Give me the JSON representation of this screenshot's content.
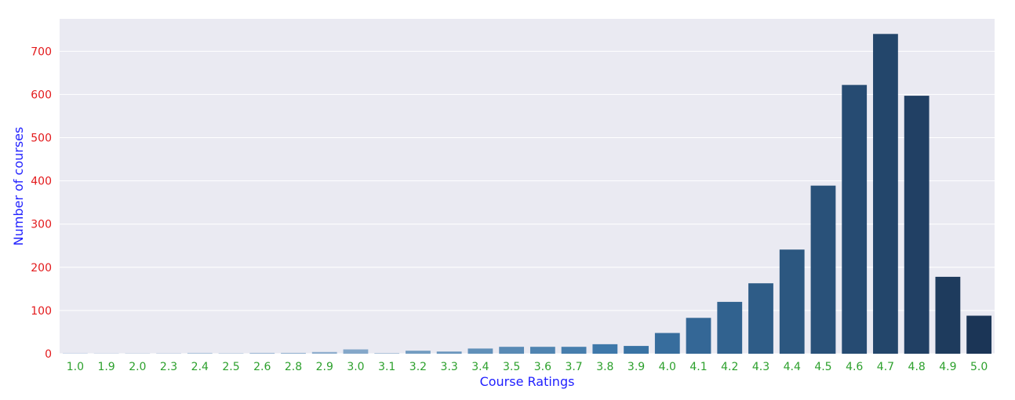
{
  "chart_data": {
    "type": "bar",
    "xlabel": "Course Ratings",
    "ylabel": "Number of courses",
    "ylim": [
      0,
      775
    ],
    "yticks": [
      0,
      100,
      200,
      300,
      400,
      500,
      600,
      700
    ],
    "grid": true,
    "categories": [
      "1.0",
      "1.9",
      "2.0",
      "2.3",
      "2.4",
      "2.5",
      "2.6",
      "2.8",
      "2.9",
      "3.0",
      "3.1",
      "3.2",
      "3.3",
      "3.4",
      "3.5",
      "3.6",
      "3.7",
      "3.8",
      "3.9",
      "4.0",
      "4.1",
      "4.2",
      "4.3",
      "4.4",
      "4.5",
      "4.6",
      "4.7",
      "4.8",
      "4.9",
      "5.0"
    ],
    "values": [
      2,
      1,
      1,
      1,
      2,
      1,
      2,
      2,
      4,
      10,
      1,
      7,
      5,
      12,
      16,
      16,
      16,
      22,
      18,
      48,
      83,
      120,
      163,
      241,
      389,
      622,
      740,
      597,
      178,
      88
    ],
    "colors": {
      "plot_bg": "#eaeaf2",
      "grid": "#ffffff",
      "ytick_text": "#e31a1c",
      "xtick_text": "#2ca02c",
      "axis_label_text": "#1f1fff",
      "bar_light": "#d3dcec",
      "bar_mid": "#3b76a8",
      "bar_dark": "#1b3556"
    }
  }
}
